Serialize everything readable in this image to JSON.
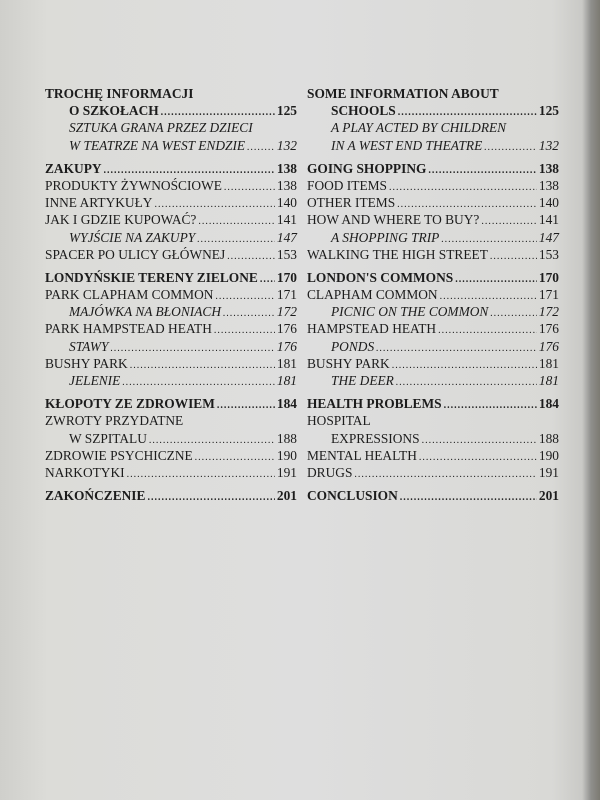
{
  "left": [
    {
      "text": "TROCHĘ INFORMACJI",
      "page": "",
      "style": "bold",
      "indent": false,
      "gap": false
    },
    {
      "text": "O SZKOŁACH",
      "page": "125",
      "style": "bold",
      "indent": true,
      "gap": false
    },
    {
      "text": "SZTUKA GRANA PRZEZ DZIECI",
      "page": "",
      "style": "ital",
      "indent": true,
      "gap": false
    },
    {
      "text": "W TEATRZE NA WEST ENDZIE",
      "page": "132",
      "style": "ital",
      "indent": true,
      "gap": false
    },
    {
      "text": "ZAKUPY",
      "page": "138",
      "style": "bold",
      "indent": false,
      "gap": true
    },
    {
      "text": "PRODUKTY ŻYWNOŚCIOWE",
      "page": "138",
      "style": "",
      "indent": false,
      "gap": false
    },
    {
      "text": "INNE ARTYKUŁY",
      "page": "140",
      "style": "",
      "indent": false,
      "gap": false
    },
    {
      "text": "JAK I GDZIE KUPOWAĆ?",
      "page": "141",
      "style": "",
      "indent": false,
      "gap": false
    },
    {
      "text": "WYJŚCIE NA ZAKUPY",
      "page": "147",
      "style": "ital",
      "indent": true,
      "gap": false
    },
    {
      "text": "SPACER PO ULICY GŁÓWNEJ",
      "page": "153",
      "style": "",
      "indent": false,
      "gap": false
    },
    {
      "text": "LONDYŃSKIE TERENY ZIELONE",
      "page": "170",
      "style": "bold",
      "indent": false,
      "gap": true
    },
    {
      "text": "PARK CLAPHAM COMMON",
      "page": "171",
      "style": "",
      "indent": false,
      "gap": false
    },
    {
      "text": "MAJÓWKA NA BŁONIACH",
      "page": "172",
      "style": "ital",
      "indent": true,
      "gap": false
    },
    {
      "text": "PARK HAMPSTEAD HEATH",
      "page": "176",
      "style": "",
      "indent": false,
      "gap": false
    },
    {
      "text": "STAWY",
      "page": "176",
      "style": "ital",
      "indent": true,
      "gap": false
    },
    {
      "text": "BUSHY PARK",
      "page": "181",
      "style": "",
      "indent": false,
      "gap": false
    },
    {
      "text": "JELENIE",
      "page": "181",
      "style": "ital",
      "indent": true,
      "gap": false
    },
    {
      "text": "KŁOPOTY ZE ZDROWIEM",
      "page": "184",
      "style": "bold",
      "indent": false,
      "gap": true
    },
    {
      "text": "ZWROTY PRZYDATNE",
      "page": "",
      "style": "",
      "indent": false,
      "gap": false
    },
    {
      "text": "W SZPITALU",
      "page": "188",
      "style": "",
      "indent": true,
      "gap": false
    },
    {
      "text": "ZDROWIE PSYCHICZNE",
      "page": "190",
      "style": "",
      "indent": false,
      "gap": false
    },
    {
      "text": "NARKOTYKI",
      "page": "191",
      "style": "",
      "indent": false,
      "gap": false
    },
    {
      "text": "ZAKOŃCZENIE",
      "page": "201",
      "style": "bold",
      "indent": false,
      "gap": true
    }
  ],
  "right": [
    {
      "text": "SOME INFORMATION ABOUT",
      "page": "",
      "style": "bold",
      "indent": false,
      "gap": false
    },
    {
      "text": "SCHOOLS",
      "page": "125",
      "style": "bold",
      "indent": true,
      "gap": false
    },
    {
      "text": "A PLAY ACTED BY CHILDREN",
      "page": "",
      "style": "ital",
      "indent": true,
      "gap": false
    },
    {
      "text": "IN A WEST END THEATRE",
      "page": "132",
      "style": "ital",
      "indent": true,
      "gap": false
    },
    {
      "text": "GOING SHOPPING",
      "page": "138",
      "style": "bold",
      "indent": false,
      "gap": true
    },
    {
      "text": "FOOD ITEMS",
      "page": "138",
      "style": "",
      "indent": false,
      "gap": false
    },
    {
      "text": "OTHER ITEMS",
      "page": "140",
      "style": "",
      "indent": false,
      "gap": false
    },
    {
      "text": "HOW AND WHERE TO BUY?",
      "page": "141",
      "style": "",
      "indent": false,
      "gap": false
    },
    {
      "text": "A SHOPPING TRIP",
      "page": "147",
      "style": "ital",
      "indent": true,
      "gap": false
    },
    {
      "text": "WALKING THE HIGH STREET",
      "page": "153",
      "style": "",
      "indent": false,
      "gap": false
    },
    {
      "text": "LONDON'S COMMONS",
      "page": "170",
      "style": "bold",
      "indent": false,
      "gap": true
    },
    {
      "text": "CLAPHAM COMMON",
      "page": "171",
      "style": "",
      "indent": false,
      "gap": false
    },
    {
      "text": "PICNIC ON THE COMMON",
      "page": "172",
      "style": "ital",
      "indent": true,
      "gap": false
    },
    {
      "text": "HAMPSTEAD HEATH",
      "page": "176",
      "style": "",
      "indent": false,
      "gap": false
    },
    {
      "text": "PONDS",
      "page": "176",
      "style": "ital",
      "indent": true,
      "gap": false
    },
    {
      "text": "BUSHY PARK",
      "page": "181",
      "style": "",
      "indent": false,
      "gap": false
    },
    {
      "text": "THE DEER",
      "page": "181",
      "style": "ital",
      "indent": true,
      "gap": false
    },
    {
      "text": "HEALTH PROBLEMS",
      "page": "184",
      "style": "bold",
      "indent": false,
      "gap": true
    },
    {
      "text": "HOSPITAL",
      "page": "",
      "style": "",
      "indent": false,
      "gap": false
    },
    {
      "text": "EXPRESSIONS",
      "page": "188",
      "style": "",
      "indent": true,
      "gap": false
    },
    {
      "text": "MENTAL HEALTH",
      "page": "190",
      "style": "",
      "indent": false,
      "gap": false
    },
    {
      "text": "DRUGS",
      "page": "191",
      "style": "",
      "indent": false,
      "gap": false
    },
    {
      "text": "CONCLUSION",
      "page": "201",
      "style": "bold",
      "indent": false,
      "gap": true
    }
  ]
}
